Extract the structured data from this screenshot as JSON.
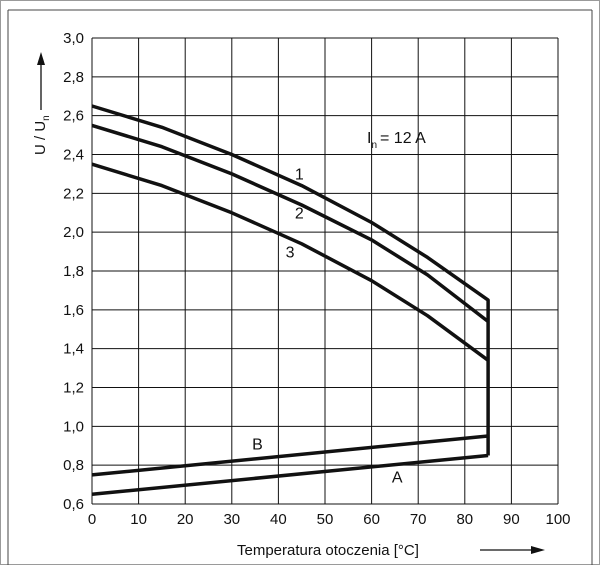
{
  "chart_data": {
    "type": "line",
    "title": "",
    "xlabel": "Temperatura otoczenia  [°C]",
    "ylabel": {
      "main": "U / U",
      "sub": "n"
    },
    "xlim": [
      0,
      100
    ],
    "ylim": [
      0.6,
      3.0
    ],
    "x_ticks": [
      "0",
      "10",
      "20",
      "30",
      "40",
      "50",
      "60",
      "70",
      "80",
      "90",
      "100"
    ],
    "y_ticks": [
      "0,6",
      "0,8",
      "1,0",
      "1,2",
      "1,4",
      "1,6",
      "1,8",
      "2,0",
      "2,2",
      "2,4",
      "2,6",
      "2,8",
      "3,0"
    ],
    "grid": true,
    "annotation": {
      "main": "I",
      "sub": "n",
      "rest": "= 12 A"
    },
    "series": [
      {
        "name": "1",
        "x": [
          0,
          15,
          30,
          45,
          60,
          72,
          85,
          85
        ],
        "y": [
          2.65,
          2.54,
          2.4,
          2.24,
          2.05,
          1.87,
          1.65,
          0.85
        ]
      },
      {
        "name": "2",
        "x": [
          0,
          15,
          30,
          45,
          60,
          72,
          85
        ],
        "y": [
          2.55,
          2.44,
          2.3,
          2.14,
          1.96,
          1.78,
          1.54
        ]
      },
      {
        "name": "3",
        "x": [
          0,
          15,
          30,
          45,
          60,
          72,
          85
        ],
        "y": [
          2.35,
          2.24,
          2.1,
          1.94,
          1.75,
          1.57,
          1.34
        ]
      },
      {
        "name": "B",
        "x": [
          0,
          85
        ],
        "y": [
          0.75,
          0.95
        ]
      },
      {
        "name": "A",
        "x": [
          0,
          85
        ],
        "y": [
          0.65,
          0.85
        ]
      }
    ],
    "series_labels": [
      {
        "text": "1",
        "x": 44.5,
        "y": 2.27
      },
      {
        "text": "2",
        "x": 44.5,
        "y": 2.07
      },
      {
        "text": "3",
        "x": 42.5,
        "y": 1.87
      },
      {
        "text": "B",
        "x": 35.5,
        "y": 0.88
      },
      {
        "text": "A",
        "x": 65.5,
        "y": 0.71
      }
    ]
  }
}
